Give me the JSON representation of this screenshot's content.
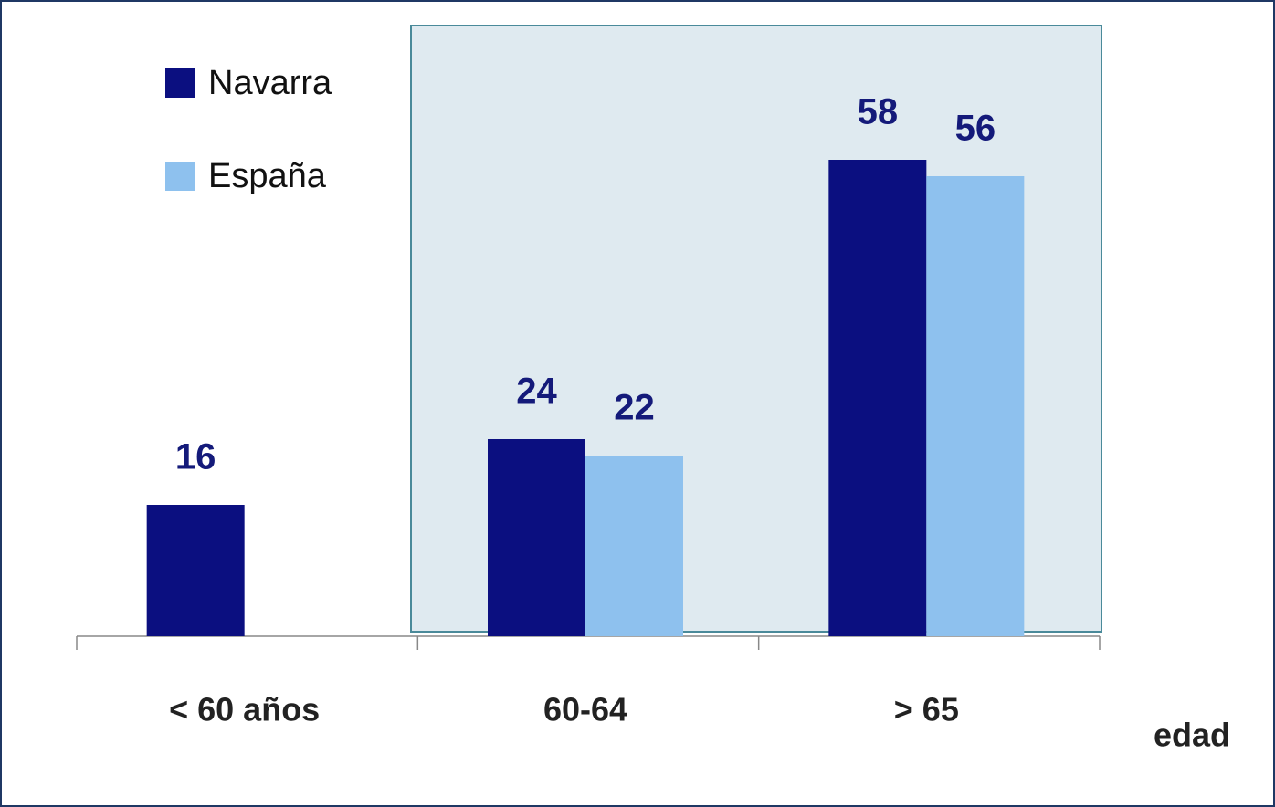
{
  "chart_data": {
    "type": "bar",
    "categories": [
      "< 60 años",
      "60-64",
      "> 65"
    ],
    "series": [
      {
        "name": "Navarra",
        "color": "#0b0f80",
        "values": [
          16,
          24,
          58
        ]
      },
      {
        "name": "España",
        "color": "#8ec1ee",
        "values": [
          null,
          22,
          56
        ]
      }
    ],
    "x_label": "edad",
    "legend": "upper left"
  }
}
